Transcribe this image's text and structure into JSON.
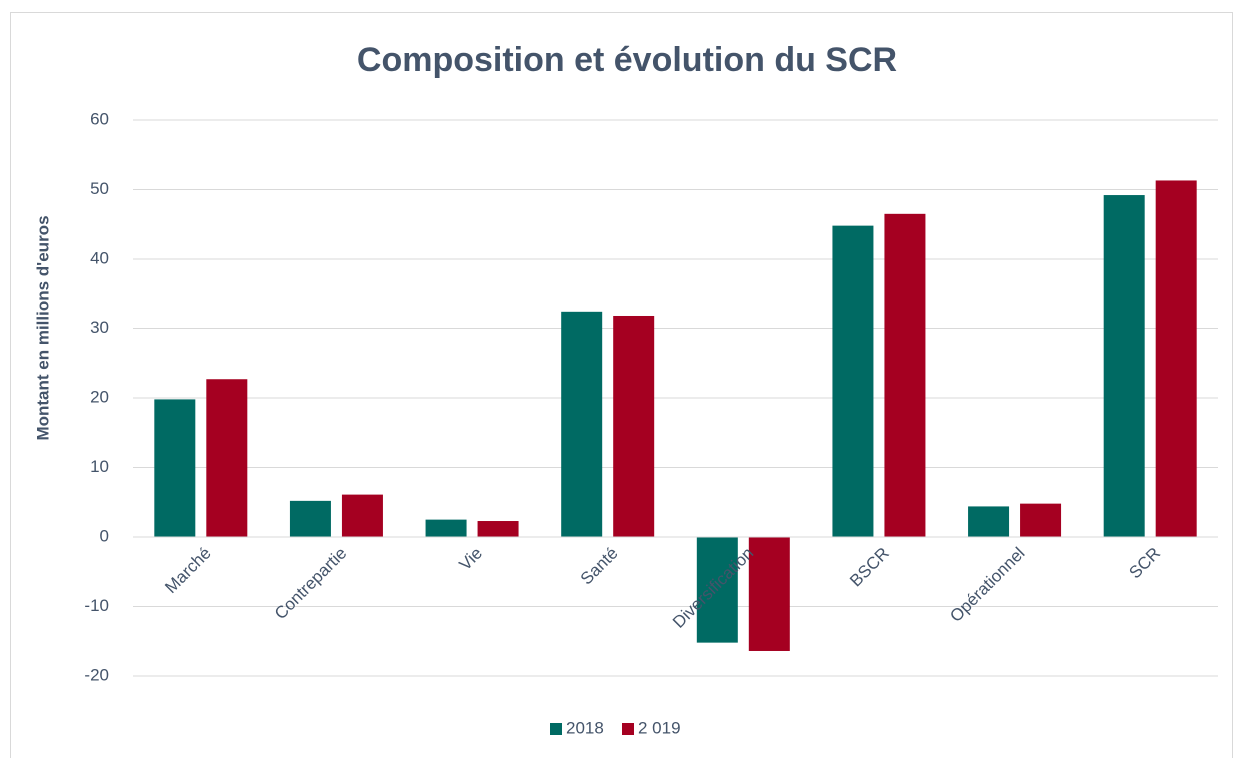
{
  "chart_data": {
    "type": "bar",
    "title": "Composition et évolution du SCR",
    "y_label": "Montant en millions d'euros",
    "categories": [
      "Marché",
      "Contrepartie",
      "Vie",
      "Santé",
      "Diversification",
      "BSCR",
      "Opérationnel",
      "SCR"
    ],
    "series": [
      {
        "name": "2018",
        "color": "#006a63",
        "values": [
          19.8,
          5.2,
          2.5,
          32.4,
          -15.2,
          44.8,
          4.4,
          49.2
        ]
      },
      {
        "name": "2 019",
        "color": "#a50021",
        "values": [
          22.7,
          6.1,
          2.3,
          31.8,
          -16.4,
          46.5,
          4.8,
          51.3
        ]
      }
    ],
    "ylim": [
      -20,
      60
    ],
    "yticks": [
      -20,
      -10,
      0,
      10,
      20,
      30,
      40,
      50,
      60
    ],
    "grid": true,
    "legend": "bottom"
  }
}
